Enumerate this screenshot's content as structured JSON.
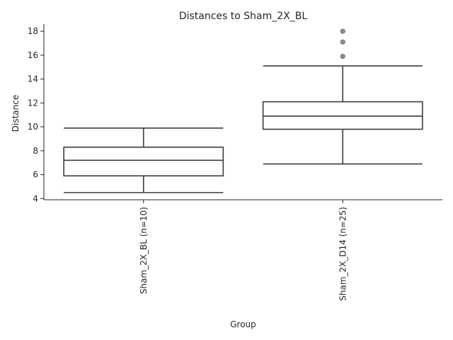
{
  "chart_data": {
    "type": "box",
    "title": "Distances to Sham_2X_BL",
    "xlabel": "Group",
    "ylabel": "Distance",
    "ylim": [
      3.9,
      18.6
    ],
    "yticks": [
      4,
      6,
      8,
      10,
      12,
      14,
      16,
      18
    ],
    "grid": false,
    "categories": [
      "Sham_2X_BL (n=10)",
      "Sham_2X_D14 (n=25)"
    ],
    "boxes": [
      {
        "category": "Sham_2X_BL (n=10)",
        "whisker_low": 4.5,
        "q1": 5.9,
        "median": 7.2,
        "q3": 8.3,
        "whisker_high": 9.9,
        "outliers": []
      },
      {
        "category": "Sham_2X_D14 (n=25)",
        "whisker_low": 6.9,
        "q1": 9.8,
        "median": 10.9,
        "q3": 12.1,
        "whisker_high": 15.1,
        "outliers": [
          15.9,
          17.1,
          18.0
        ]
      }
    ]
  }
}
